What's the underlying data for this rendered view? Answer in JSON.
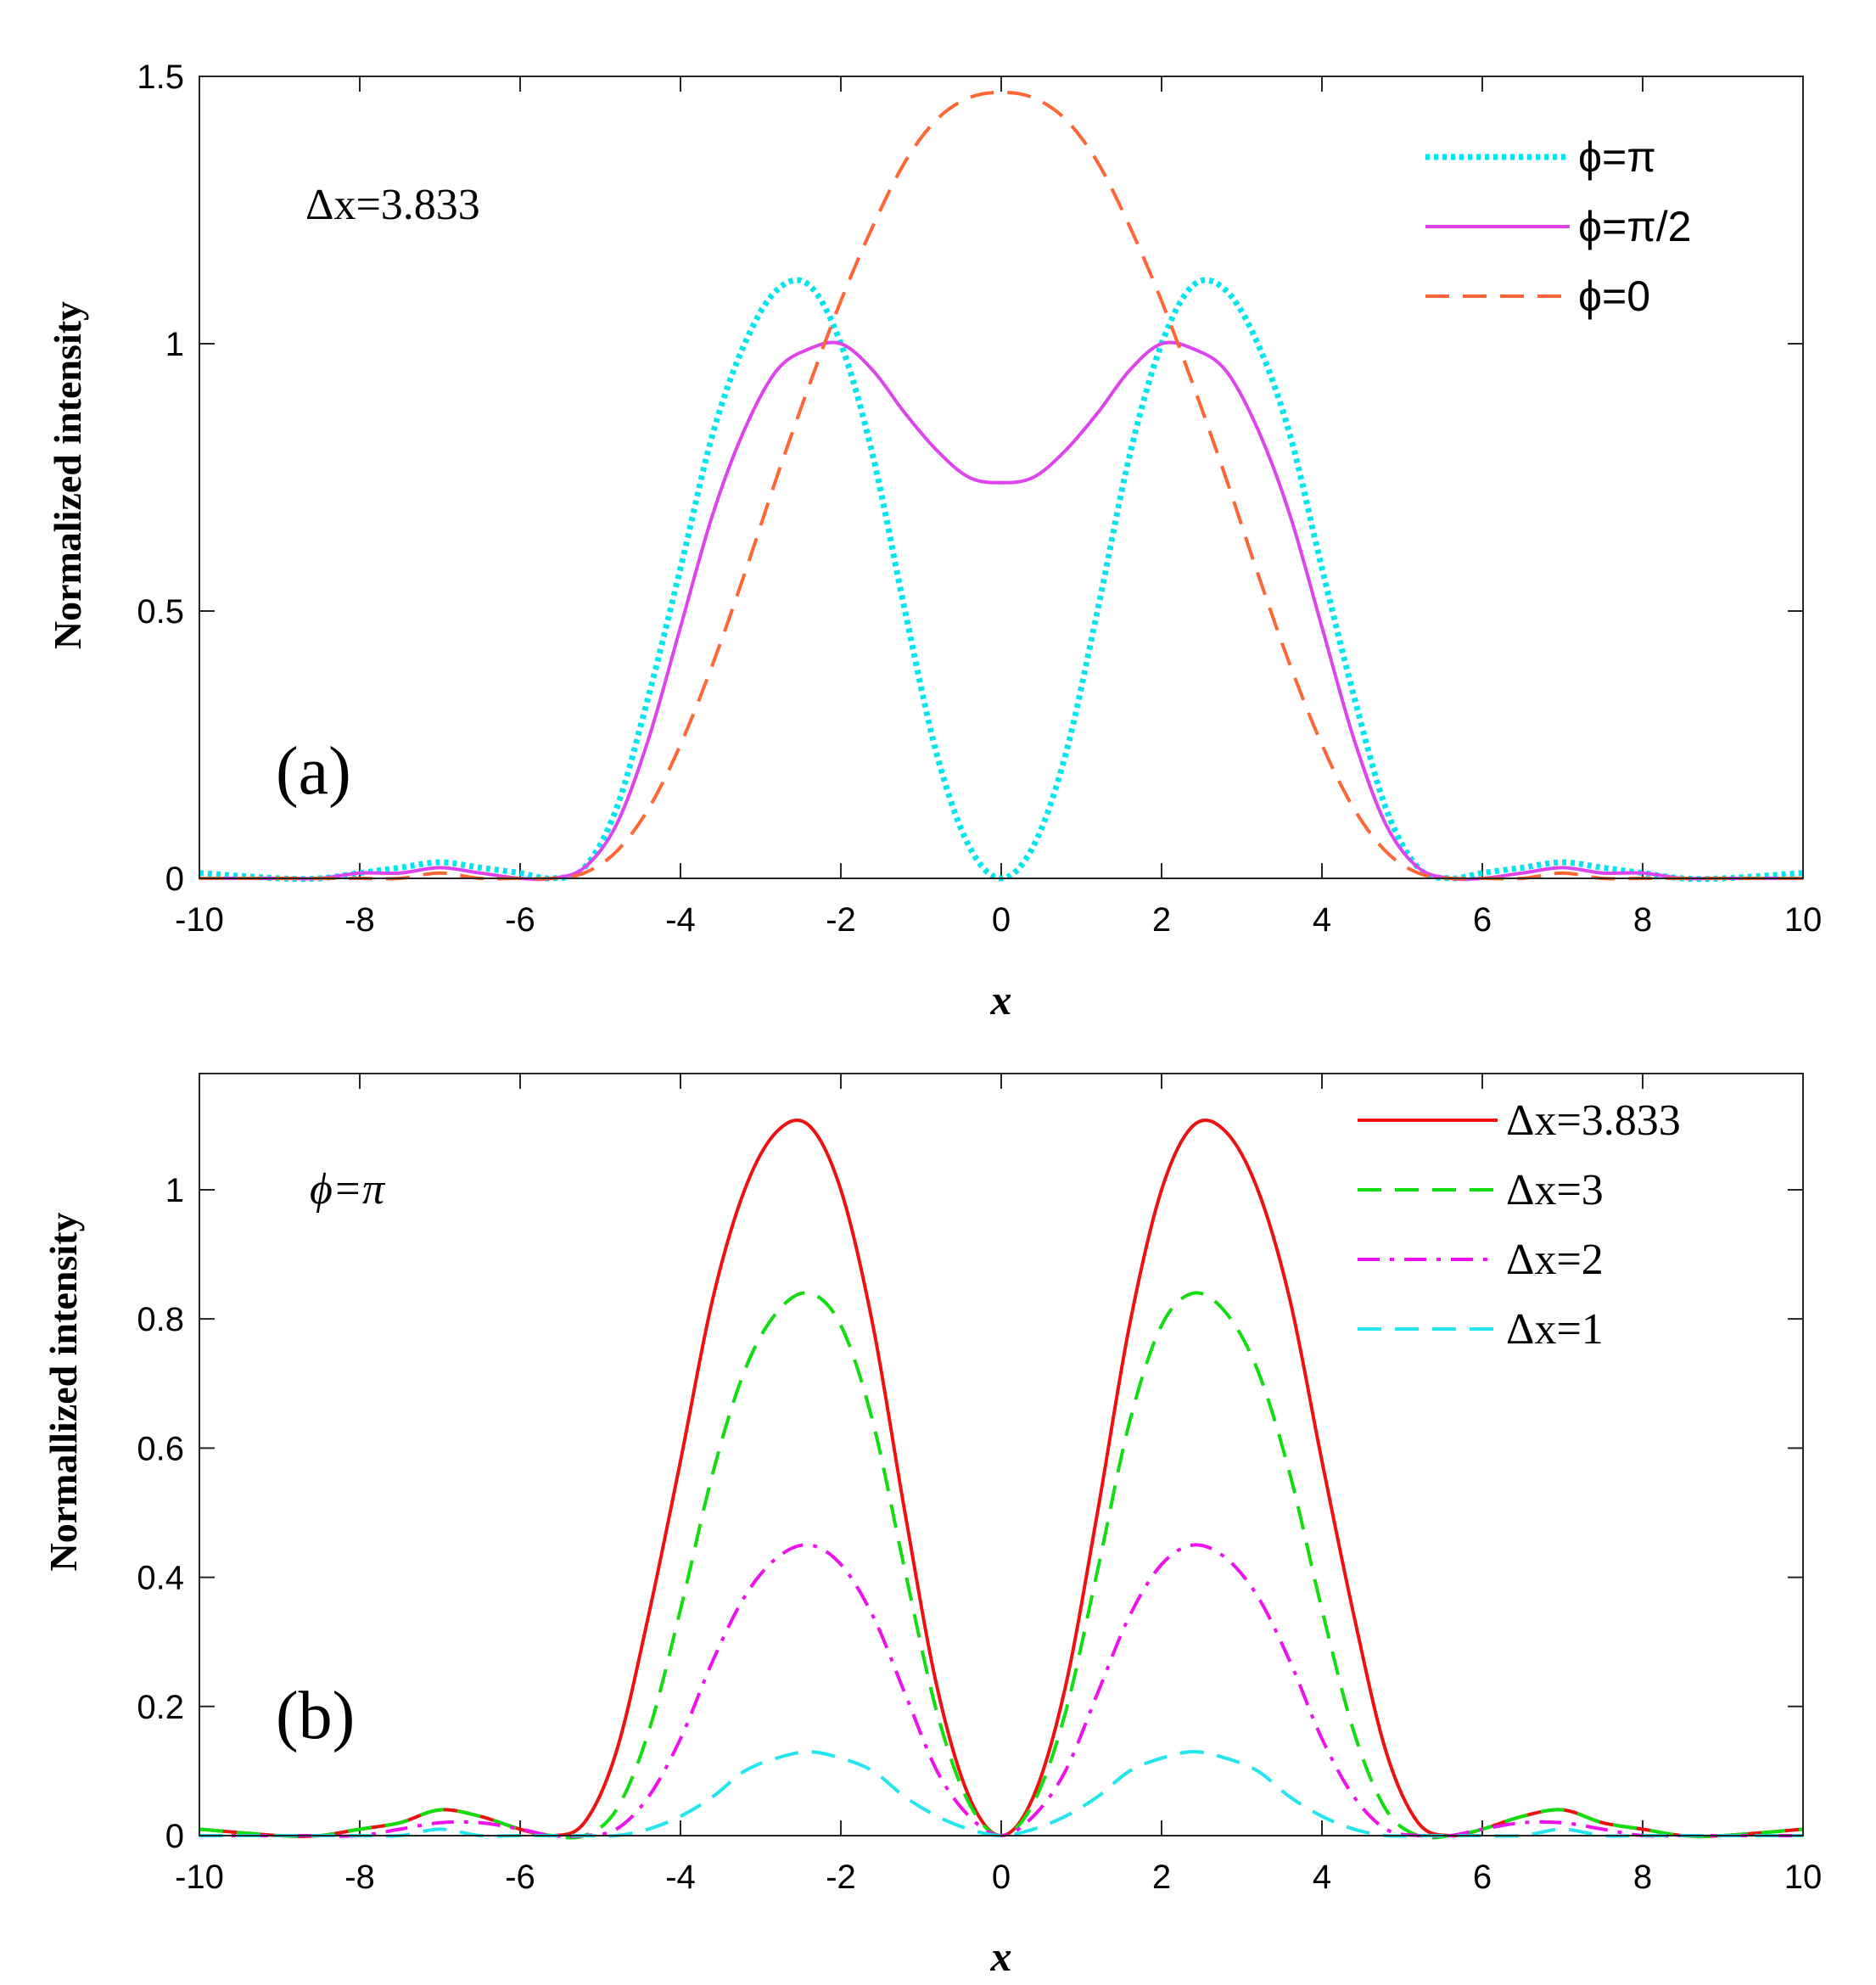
{
  "chart_data": [
    {
      "type": "line",
      "panel_label": "(a)",
      "annotation": "Δx=3.833",
      "xlabel": "x",
      "ylabel": "Normalized intensity",
      "xlim": [
        -10,
        10
      ],
      "ylim": [
        0,
        1.5
      ],
      "xticks": [
        -10,
        -8,
        -6,
        -4,
        -2,
        0,
        2,
        4,
        6,
        8,
        10
      ],
      "xtick_labels": [
        "-10",
        "-8",
        "-6",
        "-4",
        "-2",
        "0",
        "2",
        "4",
        "6",
        "8",
        "10"
      ],
      "yticks": [
        0,
        0.5,
        1,
        1.5
      ],
      "ytick_labels": [
        "0",
        "0.5",
        "1",
        "1.5"
      ],
      "legend_position": "top-right",
      "x": [
        -10,
        -9,
        -8.5,
        -8,
        -7.5,
        -7,
        -6.5,
        -6,
        -5.6,
        -5.2,
        -4.8,
        -4.4,
        -4,
        -3.6,
        -3.2,
        -2.8,
        -2.4,
        -2,
        -1.6,
        -1.2,
        -0.8,
        -0.4,
        0,
        0.4,
        0.8,
        1.2,
        1.6,
        2,
        2.4,
        2.8,
        3.2,
        3.6,
        4,
        4.4,
        4.8,
        5.2,
        5.6,
        6,
        6.5,
        7,
        7.5,
        8,
        8.5,
        9,
        10
      ],
      "series": [
        {
          "name": "ϕ=π",
          "color": "#00e5ee",
          "style": "dotted",
          "values": [
            0.01,
            0.0,
            0.0,
            0.01,
            0.02,
            0.03,
            0.02,
            0.01,
            0.0,
            0.02,
            0.13,
            0.34,
            0.58,
            0.83,
            1.0,
            1.1,
            1.11,
            1.0,
            0.79,
            0.5,
            0.23,
            0.06,
            0.0,
            0.06,
            0.23,
            0.5,
            0.79,
            1.0,
            1.11,
            1.1,
            1.0,
            0.83,
            0.58,
            0.34,
            0.13,
            0.02,
            0.0,
            0.01,
            0.02,
            0.03,
            0.02,
            0.01,
            0.0,
            0.0,
            0.01
          ]
        },
        {
          "name": "ϕ=π/2",
          "color": "#dd44ee",
          "style": "solid",
          "values": [
            0.0,
            0.0,
            0.0,
            0.01,
            0.01,
            0.02,
            0.01,
            0.0,
            0.0,
            0.02,
            0.1,
            0.26,
            0.47,
            0.68,
            0.84,
            0.95,
            0.99,
            1.0,
            0.95,
            0.87,
            0.8,
            0.75,
            0.74,
            0.75,
            0.8,
            0.87,
            0.95,
            1.0,
            0.99,
            0.95,
            0.84,
            0.68,
            0.47,
            0.26,
            0.1,
            0.02,
            0.0,
            0.0,
            0.01,
            0.02,
            0.01,
            0.01,
            0.0,
            0.0,
            0.0
          ]
        },
        {
          "name": "ϕ=0",
          "color": "#ff6633",
          "style": "dashed",
          "values": [
            0.0,
            0.0,
            0.0,
            0.0,
            0.0,
            0.01,
            0.0,
            0.0,
            0.0,
            0.01,
            0.05,
            0.13,
            0.25,
            0.4,
            0.57,
            0.75,
            0.92,
            1.08,
            1.22,
            1.34,
            1.42,
            1.46,
            1.47,
            1.46,
            1.42,
            1.34,
            1.22,
            1.08,
            0.92,
            0.75,
            0.57,
            0.4,
            0.25,
            0.13,
            0.05,
            0.01,
            0.0,
            0.0,
            0.0,
            0.01,
            0.0,
            0.0,
            0.0,
            0.0,
            0.0
          ]
        }
      ]
    },
    {
      "type": "line",
      "panel_label": "(b)",
      "annotation": "ϕ=π",
      "xlabel": "x",
      "ylabel": "Normallized intensity",
      "xlim": [
        -10,
        10
      ],
      "ylim": [
        0,
        1.18
      ],
      "xticks": [
        -10,
        -8,
        -6,
        -4,
        -2,
        0,
        2,
        4,
        6,
        8,
        10
      ],
      "xtick_labels": [
        "-10",
        "-8",
        "-6",
        "-4",
        "-2",
        "0",
        "2",
        "4",
        "6",
        "8",
        "10"
      ],
      "yticks": [
        0,
        0.2,
        0.4,
        0.6,
        0.8,
        1
      ],
      "ytick_labels": [
        "0",
        "0.2",
        "0.4",
        "0.6",
        "0.8",
        "1"
      ],
      "legend_position": "top-right",
      "x": [
        -10,
        -9,
        -8.5,
        -8,
        -7.5,
        -7,
        -6.5,
        -6,
        -5.6,
        -5.2,
        -4.8,
        -4.4,
        -4,
        -3.6,
        -3.2,
        -2.8,
        -2.4,
        -2,
        -1.6,
        -1.2,
        -0.8,
        -0.4,
        0,
        0.4,
        0.8,
        1.2,
        1.6,
        2,
        2.4,
        2.8,
        3.2,
        3.6,
        4,
        4.4,
        4.8,
        5.2,
        5.6,
        6,
        6.5,
        7,
        7.5,
        8,
        8.5,
        9,
        10
      ],
      "series": [
        {
          "name": "Δx=3.833",
          "color": "#ee1111",
          "style": "solid",
          "values": [
            0.01,
            0.0,
            0.0,
            0.01,
            0.02,
            0.04,
            0.03,
            0.01,
            0.0,
            0.02,
            0.13,
            0.34,
            0.58,
            0.83,
            1.0,
            1.09,
            1.1,
            1.0,
            0.79,
            0.5,
            0.23,
            0.06,
            0.0,
            0.06,
            0.23,
            0.5,
            0.79,
            1.0,
            1.1,
            1.09,
            1.0,
            0.83,
            0.58,
            0.34,
            0.13,
            0.02,
            0.0,
            0.01,
            0.03,
            0.04,
            0.02,
            0.01,
            0.0,
            0.0,
            0.01
          ]
        },
        {
          "name": "Δx=3",
          "color": "#11dd11",
          "style": "dashed",
          "values": [
            0.01,
            0.0,
            0.0,
            0.01,
            0.02,
            0.04,
            0.03,
            0.01,
            0.0,
            0.0,
            0.04,
            0.16,
            0.35,
            0.56,
            0.72,
            0.81,
            0.84,
            0.79,
            0.64,
            0.41,
            0.19,
            0.05,
            0.0,
            0.05,
            0.19,
            0.41,
            0.64,
            0.79,
            0.84,
            0.81,
            0.72,
            0.56,
            0.35,
            0.16,
            0.04,
            0.0,
            0.0,
            0.01,
            0.03,
            0.04,
            0.02,
            0.01,
            0.0,
            0.0,
            0.01
          ]
        },
        {
          "name": "Δx=2",
          "color": "#ee11ee",
          "style": "dashdot",
          "values": [
            0.0,
            0.0,
            0.0,
            0.0,
            0.01,
            0.02,
            0.02,
            0.01,
            0.0,
            0.0,
            0.01,
            0.06,
            0.15,
            0.27,
            0.37,
            0.43,
            0.45,
            0.42,
            0.34,
            0.22,
            0.1,
            0.03,
            0.0,
            0.03,
            0.1,
            0.22,
            0.34,
            0.42,
            0.45,
            0.43,
            0.37,
            0.27,
            0.15,
            0.06,
            0.01,
            0.0,
            0.0,
            0.01,
            0.02,
            0.02,
            0.01,
            0.0,
            0.0,
            0.0,
            0.0
          ]
        },
        {
          "name": "Δx=1",
          "color": "#22e5f0",
          "style": "dashed",
          "values": [
            0.0,
            0.0,
            0.0,
            0.0,
            0.0,
            0.01,
            0.0,
            0.0,
            0.0,
            0.0,
            0.0,
            0.01,
            0.03,
            0.06,
            0.1,
            0.12,
            0.13,
            0.12,
            0.1,
            0.06,
            0.03,
            0.01,
            0.0,
            0.01,
            0.03,
            0.06,
            0.1,
            0.12,
            0.13,
            0.12,
            0.1,
            0.06,
            0.03,
            0.01,
            0.0,
            0.0,
            0.0,
            0.0,
            0.0,
            0.01,
            0.0,
            0.0,
            0.0,
            0.0,
            0.0
          ]
        }
      ]
    }
  ]
}
